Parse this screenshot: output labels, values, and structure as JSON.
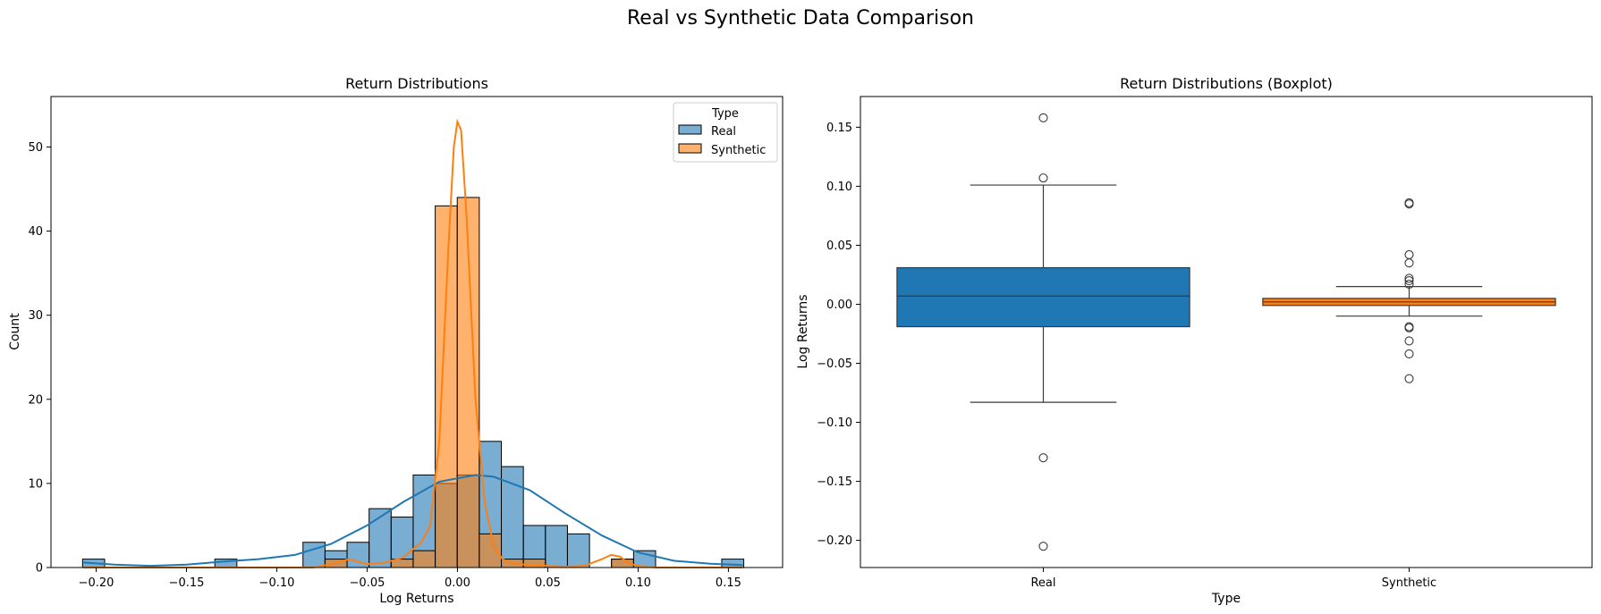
{
  "figure": {
    "suptitle": "Real vs Synthetic Data Comparison"
  },
  "colors": {
    "real": "#1f77b4",
    "synthetic": "#ff7f0e",
    "box_edge": "#3a3a3a",
    "axes": "#000000"
  },
  "chart_data": [
    {
      "type": "bar",
      "subtype": "histogram-with-kde",
      "title": "Return Distributions",
      "xlabel": "Log Returns",
      "ylabel": "Count",
      "xlim": [
        -0.225,
        0.18
      ],
      "ylim": [
        0,
        56
      ],
      "xticks": [
        -0.2,
        -0.15,
        -0.1,
        -0.05,
        0.0,
        0.05,
        0.1,
        0.15
      ],
      "xtick_labels": [
        "−0.20",
        "−0.15",
        "−0.10",
        "−0.05",
        "0.00",
        "0.05",
        "0.10",
        "0.15"
      ],
      "yticks": [
        0,
        10,
        20,
        30,
        40,
        50
      ],
      "ytick_labels": [
        "0",
        "10",
        "20",
        "30",
        "40",
        "50"
      ],
      "legend": {
        "title": "Type",
        "placement": "top-right",
        "entries": [
          "Real",
          "Synthetic"
        ]
      },
      "bin_start": -0.2075,
      "bin_width": 0.0122,
      "series": [
        {
          "name": "Real",
          "counts": [
            1,
            0,
            0,
            0,
            0,
            0,
            1,
            0,
            0,
            0,
            3,
            2,
            3,
            7,
            6,
            11,
            10,
            11,
            15,
            12,
            5,
            5,
            4,
            0,
            1,
            2,
            0,
            0,
            0,
            1
          ]
        },
        {
          "name": "Synthetic",
          "counts": [
            0,
            0,
            0,
            0,
            0,
            0,
            0,
            0,
            0,
            0,
            0,
            1,
            0,
            0,
            1,
            2,
            43,
            44,
            4,
            1,
            1,
            0,
            0,
            0,
            1,
            0,
            0,
            0,
            0,
            0
          ]
        }
      ],
      "kde": [
        {
          "name": "Real",
          "x": [
            -0.207,
            -0.19,
            -0.17,
            -0.15,
            -0.13,
            -0.11,
            -0.09,
            -0.07,
            -0.05,
            -0.03,
            -0.01,
            0.0,
            0.01,
            0.02,
            0.04,
            0.06,
            0.08,
            0.1,
            0.12,
            0.14,
            0.158
          ],
          "y": [
            0.6,
            0.35,
            0.2,
            0.35,
            0.7,
            1.0,
            1.5,
            2.8,
            5.0,
            7.8,
            10.2,
            10.6,
            11.0,
            10.8,
            9.2,
            6.4,
            3.8,
            1.8,
            0.8,
            0.45,
            0.3
          ]
        },
        {
          "name": "Synthetic",
          "x": [
            -0.207,
            -0.08,
            -0.07,
            -0.06,
            -0.05,
            -0.04,
            -0.03,
            -0.02,
            -0.015,
            -0.01,
            -0.005,
            -0.002,
            0.0,
            0.002,
            0.005,
            0.01,
            0.015,
            0.02,
            0.025,
            0.03,
            0.04,
            0.05,
            0.06,
            0.07,
            0.075,
            0.08,
            0.085,
            0.09,
            0.095,
            0.1,
            0.11,
            0.158
          ],
          "y": [
            0,
            0,
            0.4,
            1.0,
            0.4,
            0.6,
            1.2,
            3.0,
            5.0,
            15,
            38,
            50,
            53,
            52,
            42,
            20,
            8,
            2.5,
            1.0,
            0.5,
            0.3,
            0.2,
            0.1,
            0.2,
            0.6,
            1.0,
            1.5,
            1.3,
            0.5,
            0.2,
            0,
            0
          ]
        }
      ]
    },
    {
      "type": "box",
      "title": "Return Distributions (Boxplot)",
      "xlabel": "Type",
      "ylabel": "Log Returns",
      "categories": [
        "Real",
        "Synthetic"
      ],
      "ylim": [
        -0.223,
        0.176
      ],
      "yticks": [
        -0.2,
        -0.15,
        -0.1,
        -0.05,
        0.0,
        0.05,
        0.1,
        0.15
      ],
      "ytick_labels": [
        "−0.20",
        "−0.15",
        "−0.10",
        "−0.05",
        "0.00",
        "0.05",
        "0.10",
        "0.15"
      ],
      "series": [
        {
          "name": "Real",
          "q1": -0.019,
          "median": 0.007,
          "q3": 0.031,
          "whisker_low": -0.083,
          "whisker_high": 0.101,
          "outliers": [
            0.158,
            0.107,
            -0.13,
            -0.205
          ]
        },
        {
          "name": "Synthetic",
          "q1": -0.001,
          "median": 0.002,
          "q3": 0.005,
          "whisker_low": -0.01,
          "whisker_high": 0.015,
          "outliers": [
            0.086,
            0.085,
            0.042,
            0.035,
            0.022,
            0.02,
            0.017,
            -0.019,
            -0.02,
            -0.031,
            -0.042,
            -0.063
          ]
        }
      ]
    }
  ]
}
